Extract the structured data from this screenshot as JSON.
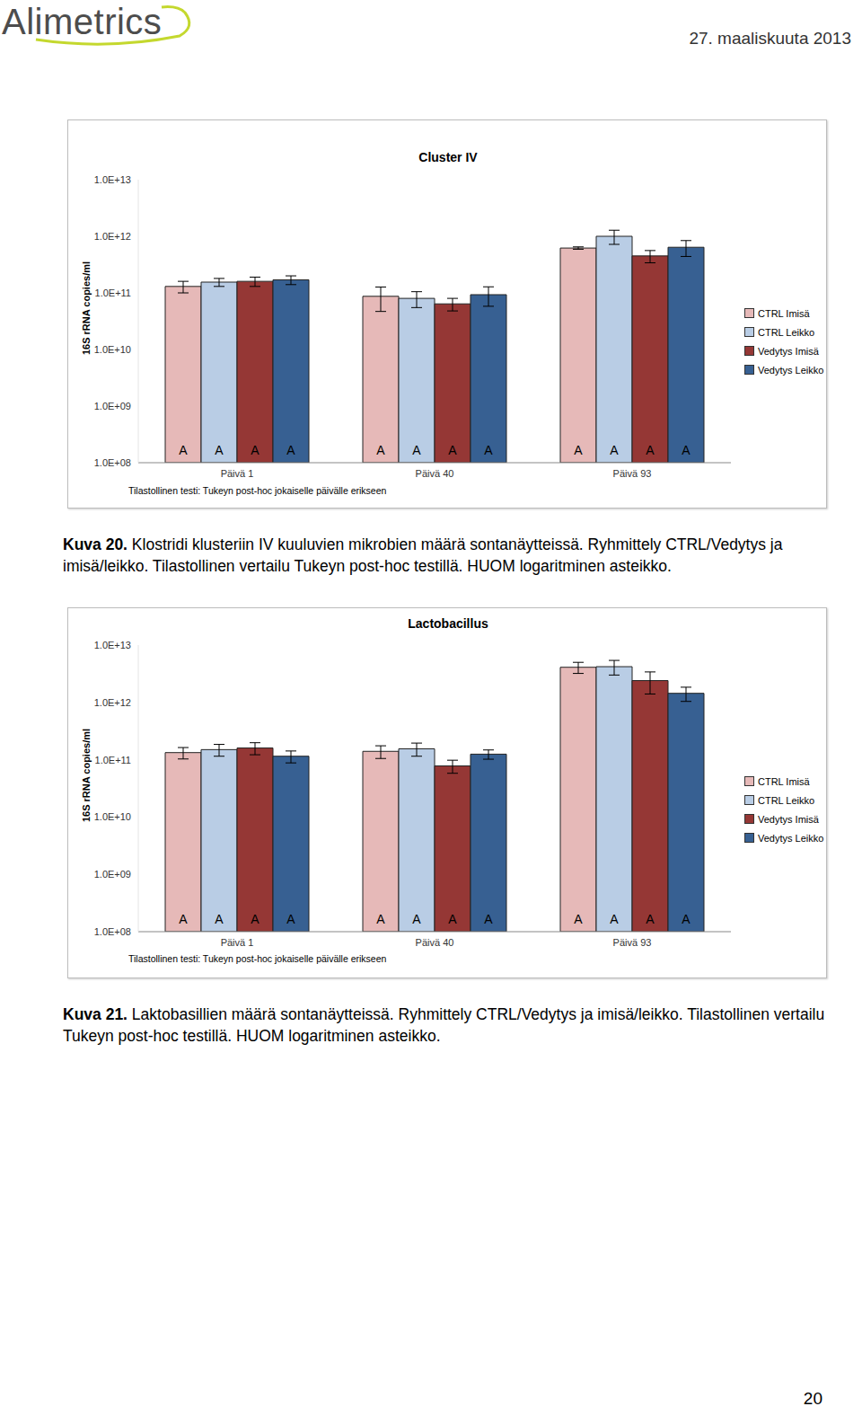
{
  "header": {
    "logo": "Alimetrics",
    "date": "27. maaliskuuta 2013"
  },
  "chart_data": [
    {
      "type": "bar",
      "title": "Cluster IV",
      "ylabel": "16S rRNA copies/ml",
      "xlabel": "Tilastollinen testi: Tukeyn post-hoc jokaiselle päivälle erikseen",
      "categories": [
        "Päivä 1",
        "Päivä 40",
        "Päivä 93"
      ],
      "series": [
        {
          "name": "CTRL Imisä",
          "color": "#e6b9b8",
          "values": [
            130000000000.0,
            87000000000.0,
            620000000000.0
          ],
          "errors": [
            30000000000.0,
            40000000000.0,
            30000000000.0
          ],
          "letters": [
            "A",
            "A",
            "A"
          ]
        },
        {
          "name": "CTRL Leikko",
          "color": "#b9cde5",
          "values": [
            155000000000.0,
            80000000000.0,
            1000000000000.0
          ],
          "errors": [
            25000000000.0,
            25000000000.0,
            280000000000.0
          ],
          "letters": [
            "A",
            "A",
            "A"
          ]
        },
        {
          "name": "Vedytys Imisä",
          "color": "#953735",
          "values": [
            160000000000.0,
            64000000000.0,
            450000000000.0
          ],
          "errors": [
            30000000000.0,
            16000000000.0,
            110000000000.0
          ],
          "letters": [
            "A",
            "A",
            "A"
          ]
        },
        {
          "name": "Vedytys Leikko",
          "color": "#376092",
          "values": [
            170000000000.0,
            93000000000.0,
            640000000000.0
          ],
          "errors": [
            30000000000.0,
            35000000000.0,
            200000000000.0
          ],
          "letters": [
            "A",
            "A",
            "A"
          ]
        }
      ],
      "ylim": [
        100000000,
        10000000000000
      ],
      "yticks": [
        {
          "value": 100000000,
          "label": "1.0E+08"
        },
        {
          "value": 1000000000,
          "label": "1.0E+09"
        },
        {
          "value": 10000000000,
          "label": "1.0E+10"
        },
        {
          "value": 100000000000,
          "label": "1.0E+11"
        },
        {
          "value": 1000000000000,
          "label": "1.0E+12"
        },
        {
          "value": 10000000000000,
          "label": "1.0E+13"
        }
      ],
      "log": "y",
      "grid": false,
      "legend": "right"
    },
    {
      "type": "bar",
      "title": "Lactobacillus",
      "ylabel": "16S rRNA copies/ml",
      "xlabel": "Tilastollinen testi: Tukeyn post-hoc jokaiselle päivälle erikseen",
      "categories": [
        "Päivä 1",
        "Päivä 40",
        "Päivä 93"
      ],
      "series": [
        {
          "name": "CTRL Imisä",
          "color": "#e6b9b8",
          "values": [
            133000000000.0,
            140000000000.0,
            4100000000000.0
          ],
          "errors": [
            30000000000.0,
            35000000000.0,
            900000000000.0
          ],
          "letters": [
            "A",
            "A",
            "A"
          ]
        },
        {
          "name": "CTRL Leikko",
          "color": "#b9cde5",
          "values": [
            150000000000.0,
            155000000000.0,
            4200000000000.0
          ],
          "errors": [
            35000000000.0,
            40000000000.0,
            1200000000000.0
          ],
          "letters": [
            "A",
            "A",
            "A"
          ]
        },
        {
          "name": "Vedytys Imisä",
          "color": "#953735",
          "values": [
            160000000000.0,
            78000000000.0,
            2400000000000.0
          ],
          "errors": [
            38000000000.0,
            20000000000.0,
            1000000000000.0
          ],
          "letters": [
            "A",
            "A",
            "A"
          ]
        },
        {
          "name": "Vedytys Leikko",
          "color": "#376092",
          "values": [
            115000000000.0,
            125000000000.0,
            1440000000000.0
          ],
          "errors": [
            27000000000.0,
            23000000000.0,
            400000000000.0
          ],
          "letters": [
            "A",
            "A",
            "A"
          ]
        }
      ],
      "ylim": [
        100000000,
        10000000000000
      ],
      "yticks": [
        {
          "value": 100000000,
          "label": "1.0E+08"
        },
        {
          "value": 1000000000,
          "label": "1.0E+09"
        },
        {
          "value": 10000000000,
          "label": "1.0E+10"
        },
        {
          "value": 100000000000,
          "label": "1.0E+11"
        },
        {
          "value": 1000000000000,
          "label": "1.0E+12"
        },
        {
          "value": 10000000000000,
          "label": "1.0E+13"
        }
      ],
      "log": "y",
      "grid": false,
      "legend": "right"
    }
  ],
  "captions": [
    {
      "label": "Kuva 20.",
      "text": "Klostridi klusteriin IV kuuluvien mikrobien määrä sontanäytteissä. Ryhmittely CTRL/Vedytys ja imisä/leikko. Tilastollinen vertailu Tukeyn post-hoc testillä. HUOM logaritminen asteikko."
    },
    {
      "label": "Kuva 21.",
      "text": "Laktobasillien määrä sontanäytteissä. Ryhmittely CTRL/Vedytys ja imisä/leikko. Tilastollinen vertailu Tukeyn post-hoc testillä. HUOM logaritminen asteikko."
    }
  ],
  "page_number": "20"
}
